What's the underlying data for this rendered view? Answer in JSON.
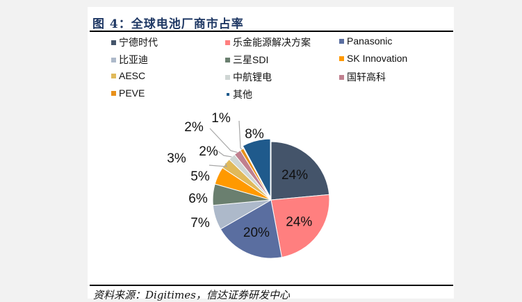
{
  "title": "图 4：全球电池厂商市占率",
  "source": "资料来源：Digitimes，信达证券研发中心",
  "chart_data": {
    "type": "pie",
    "title": "",
    "legend_position": "top",
    "slices": [
      {
        "name": "宁德时代",
        "value": 24,
        "label": "24%",
        "color": "#44546a"
      },
      {
        "name": "乐金能源解决方案",
        "value": 24,
        "label": "24%",
        "color": "#ff7f7f"
      },
      {
        "name": "Panasonic",
        "value": 20,
        "label": "20%",
        "color": "#5a6ea0"
      },
      {
        "name": "比亚迪",
        "value": 7,
        "label": "7%",
        "color": "#adb9ca"
      },
      {
        "name": "三星SDI",
        "value": 6,
        "label": "6%",
        "color": "#6a7f6f"
      },
      {
        "name": "SK Innovation",
        "value": 5,
        "label": "5%",
        "color": "#ff9900"
      },
      {
        "name": "AESC",
        "value": 3,
        "label": "3%",
        "color": "#e0b95a"
      },
      {
        "name": "中航锂电",
        "value": 2,
        "label": "2%",
        "color": "#cfd6d4"
      },
      {
        "name": "国轩高科",
        "value": 2,
        "label": "2%",
        "color": "#c0808f"
      },
      {
        "name": "PEVE",
        "value": 1,
        "label": "1%",
        "color": "#e8901a"
      },
      {
        "name": "其他",
        "value": 8,
        "label": "8%",
        "color": "#1f5a8c",
        "exploded": true
      }
    ]
  }
}
